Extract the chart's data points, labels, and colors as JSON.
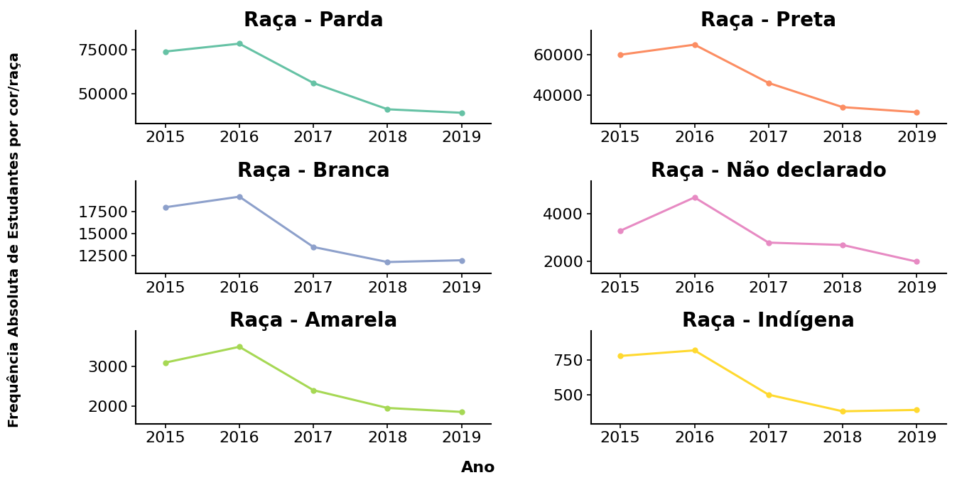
{
  "years": [
    2015,
    2016,
    2017,
    2018,
    2019
  ],
  "subplots": [
    {
      "title": "Raça - Parda",
      "values": [
        74000,
        78500,
        56000,
        41000,
        39000
      ],
      "color": "#66c2a5",
      "yticks": [
        50000,
        75000
      ],
      "ylim": [
        33000,
        86000
      ]
    },
    {
      "title": "Raça - Preta",
      "values": [
        60000,
        65000,
        46000,
        34000,
        31500
      ],
      "color": "#fc8d62",
      "yticks": [
        40000,
        60000
      ],
      "ylim": [
        26000,
        72000
      ]
    },
    {
      "title": "Raça - Branca",
      "values": [
        18000,
        19200,
        13500,
        11800,
        12000
      ],
      "color": "#8da0cb",
      "yticks": [
        12500,
        15000,
        17500
      ],
      "ylim": [
        10500,
        21000
      ]
    },
    {
      "title": "Raça - Não declarado",
      "values": [
        3300,
        4700,
        2800,
        2700,
        2000
      ],
      "color": "#e78ac3",
      "yticks": [
        2000,
        4000
      ],
      "ylim": [
        1500,
        5400
      ]
    },
    {
      "title": "Raça - Amarela",
      "values": [
        3100,
        3500,
        2400,
        1950,
        1850
      ],
      "color": "#a6d854",
      "yticks": [
        2000,
        3000
      ],
      "ylim": [
        1550,
        3900
      ]
    },
    {
      "title": "Raça - Indígena",
      "values": [
        780,
        820,
        500,
        380,
        390
      ],
      "color": "#ffd92f",
      "yticks": [
        500,
        750
      ],
      "ylim": [
        290,
        960
      ]
    }
  ],
  "ylabel": "Frequência Absoluta de Estudantes por cor/raça",
  "xlabel": "Ano",
  "background_color": "#ffffff",
  "title_fontsize": 20,
  "tick_fontsize": 16,
  "label_fontsize": 16,
  "ylabel_fontsize": 14
}
